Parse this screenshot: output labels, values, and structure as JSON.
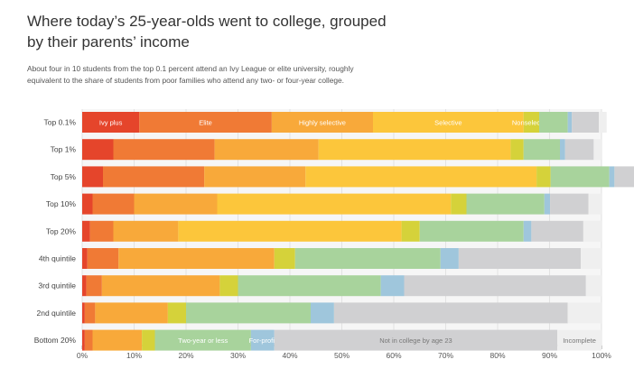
{
  "title": "Where today’s 25-year-olds went to college, grouped by their parents’ income",
  "subtitle": "About four in 10 students from the top 0.1 percent attend an Ivy League or elite university, roughly equivalent to the share of students from poor families who attend any two- or four-year college.",
  "chart_data": {
    "type": "bar",
    "orientation": "horizontal",
    "stacked": true,
    "categories": [
      "Top 0.1%",
      "Top 1%",
      "Top 5%",
      "Top 10%",
      "Top 20%",
      "4th quintile",
      "3rd quintile",
      "2nd quintile",
      "Bottom 20%"
    ],
    "segment_types": [
      "Ivy plus",
      "Elite",
      "Highly selective",
      "Selective",
      "Nonselective",
      "Two-year or less",
      "For-profit",
      "Not in college by age 23",
      "Incomplete"
    ],
    "colors": [
      "#e5452b",
      "#f07a35",
      "#f8a93a",
      "#fcc63b",
      "#d5d23a",
      "#a8d39c",
      "#9fc6dc",
      "#d0d0d2",
      "#efefef"
    ],
    "segment_labels_shown": {
      "Top 0.1%": [
        "Ivy plus",
        "Elite",
        "Highly selective",
        "Selective",
        "Nonselective",
        "",
        "",
        "",
        ""
      ],
      "Bottom 20%": [
        "",
        "",
        "",
        "",
        "",
        "Two-year or less",
        "For-profit",
        "Not in college by age 23",
        "Incomplete"
      ]
    },
    "values": [
      [
        11,
        25.5,
        19.5,
        29,
        3,
        5.5,
        0.8,
        5.2,
        1.5
      ],
      [
        6,
        19.5,
        20,
        37,
        2.5,
        7,
        1,
        5.5,
        1.5
      ],
      [
        4,
        19.5,
        19.5,
        44.5,
        2.7,
        11.3,
        1,
        5.8,
        1.7
      ],
      [
        2,
        8,
        16,
        45,
        3,
        15,
        1.1,
        7.4,
        2.5
      ],
      [
        1.5,
        4.5,
        12.5,
        43,
        3.5,
        20,
        1.5,
        10,
        3.5
      ],
      [
        1,
        6,
        30,
        0,
        4,
        28,
        3.5,
        23.5,
        4
      ],
      [
        0.8,
        3,
        22.7,
        0,
        3.5,
        27.5,
        4.5,
        35,
        3
      ],
      [
        0.5,
        2,
        14,
        0,
        3.5,
        24,
        4.5,
        45,
        6.5
      ],
      [
        0.5,
        1.5,
        9.5,
        0,
        2.5,
        18.5,
        4.5,
        54.5,
        8.5
      ]
    ],
    "xaxis_ticks": [
      "0%",
      "10%",
      "20%",
      "30%",
      "40%",
      "50%",
      "60%",
      "70%",
      "80%",
      "90%",
      "100%"
    ],
    "xlim": [
      0,
      100
    ],
    "grid": true
  }
}
